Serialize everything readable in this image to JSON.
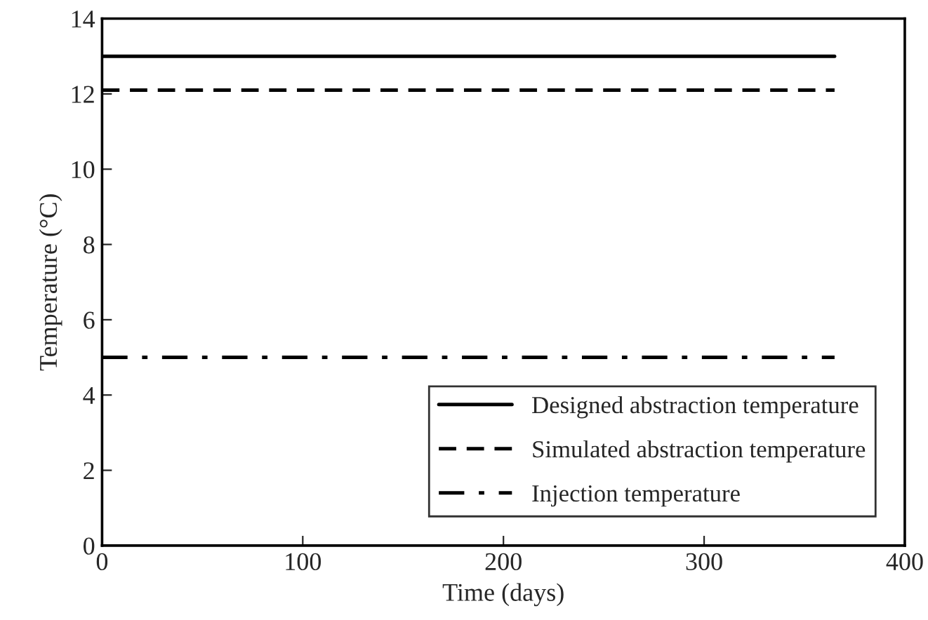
{
  "chart_data": {
    "type": "line",
    "xlabel": "Time (days)",
    "ylabel": "Temperature (°C)",
    "x": [
      0,
      365
    ],
    "series": [
      {
        "name": "Designed abstraction temperature",
        "color": "#000000",
        "values": [
          13,
          13
        ],
        "line_style": "solid"
      },
      {
        "name": "Simulated abstraction temperature",
        "color": "#000000",
        "values": [
          12.1,
          12.1
        ],
        "line_style": "dashed"
      },
      {
        "name": "Injection temperature",
        "color": "#000000",
        "values": [
          5,
          5
        ],
        "line_style": "dashdot"
      }
    ],
    "xlim": [
      0,
      400
    ],
    "xticks": [
      0,
      100,
      200,
      300,
      400
    ],
    "ylim": [
      0,
      14
    ],
    "yticks": [
      0,
      2,
      4,
      6,
      8,
      10,
      12,
      14
    ],
    "grid": false,
    "legend": "bottom right",
    "marker": "none"
  }
}
